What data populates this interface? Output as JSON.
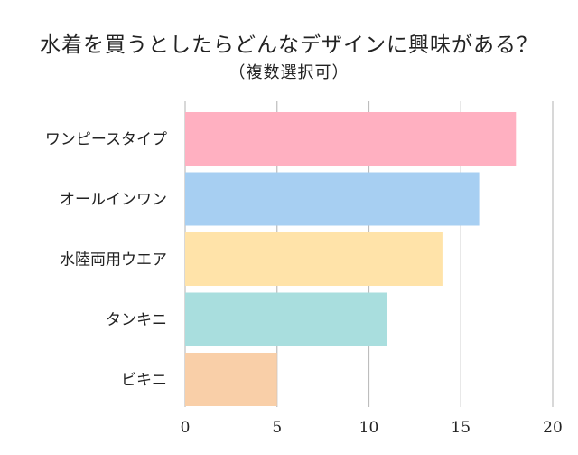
{
  "chart_data": {
    "type": "bar",
    "orientation": "horizontal",
    "title": "水着を買うとしたらどんなデザインに興味がある？",
    "subtitle": "（複数選択可）",
    "categories": [
      "ワンピースタイプ",
      "オールインワン",
      "水陸両用ウエア",
      "タンキニ",
      "ビキニ"
    ],
    "values": [
      18,
      16,
      14,
      11,
      5
    ],
    "colors": [
      "#ffb0c1",
      "#a7cff2",
      "#ffe3a9",
      "#a9dede",
      "#f9cfa8"
    ],
    "xlim": [
      0,
      20
    ],
    "xticks": [
      "0",
      "5",
      "10",
      "15",
      "20"
    ],
    "grid": true,
    "legend": "none"
  }
}
